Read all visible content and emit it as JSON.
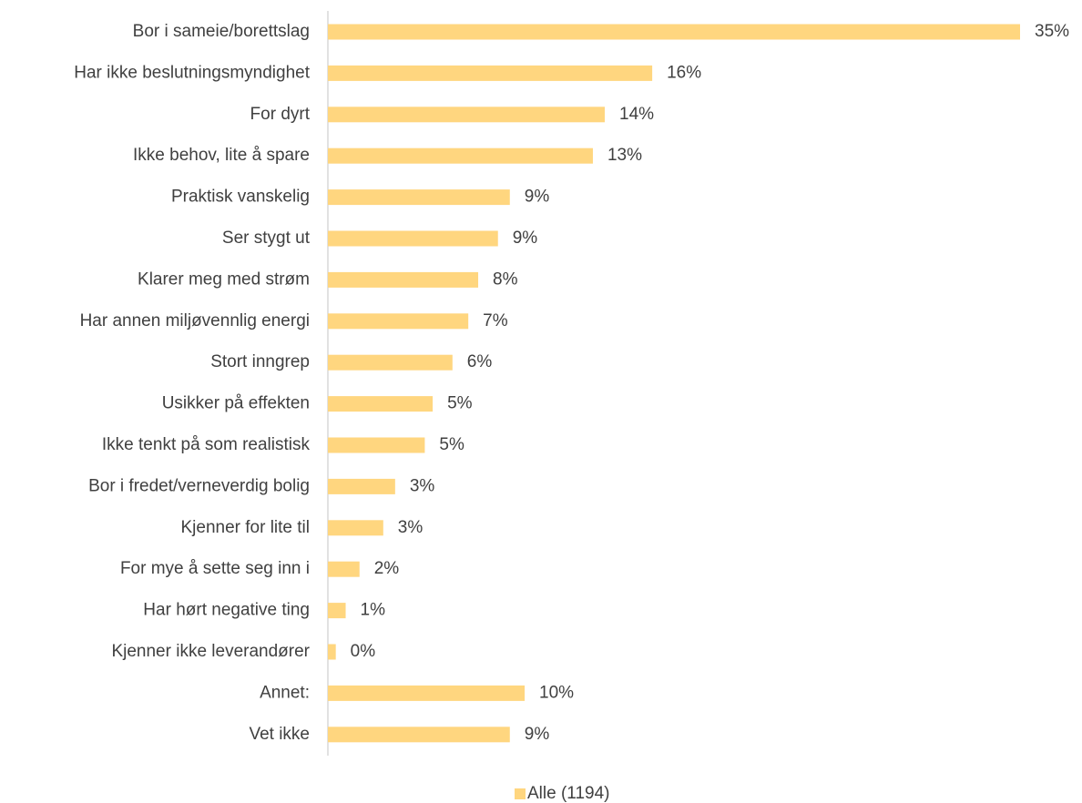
{
  "chart_data": {
    "type": "bar",
    "orientation": "horizontal",
    "categories": [
      "Bor i sameie/borettslag",
      "Har ikke beslutningsmyndighet",
      "For dyrt",
      "Ikke behov, lite å spare",
      "Praktisk vanskelig",
      "Ser stygt ut",
      "Klarer meg med strøm",
      "Har annen miljøvennlig energi",
      "Stort inngrep",
      "Usikker på effekten",
      "Ikke tenkt på som realistisk",
      "Bor i fredet/verneverdig bolig",
      "Kjenner for lite til",
      "For mye å sette seg inn i",
      "Har hørt negative ting",
      "Kjenner ikke leverandører",
      "Annet:",
      "Vet ikke"
    ],
    "series": [
      {
        "name": "Alle (1194)",
        "color": "#ffd67f",
        "values": [
          35,
          16.4,
          14.0,
          13.4,
          9.2,
          8.6,
          7.6,
          7.1,
          6.3,
          5.3,
          4.9,
          3.4,
          2.8,
          1.6,
          0.9,
          0.4,
          9.95,
          9.2
        ],
        "value_labels": [
          "35%",
          "16%",
          "14%",
          "13%",
          "9%",
          "9%",
          "8%",
          "7%",
          "6%",
          "5%",
          "5%",
          "3%",
          "3%",
          "2%",
          "1%",
          "0%",
          "10%",
          "9%"
        ]
      }
    ],
    "legend": "bottom"
  }
}
